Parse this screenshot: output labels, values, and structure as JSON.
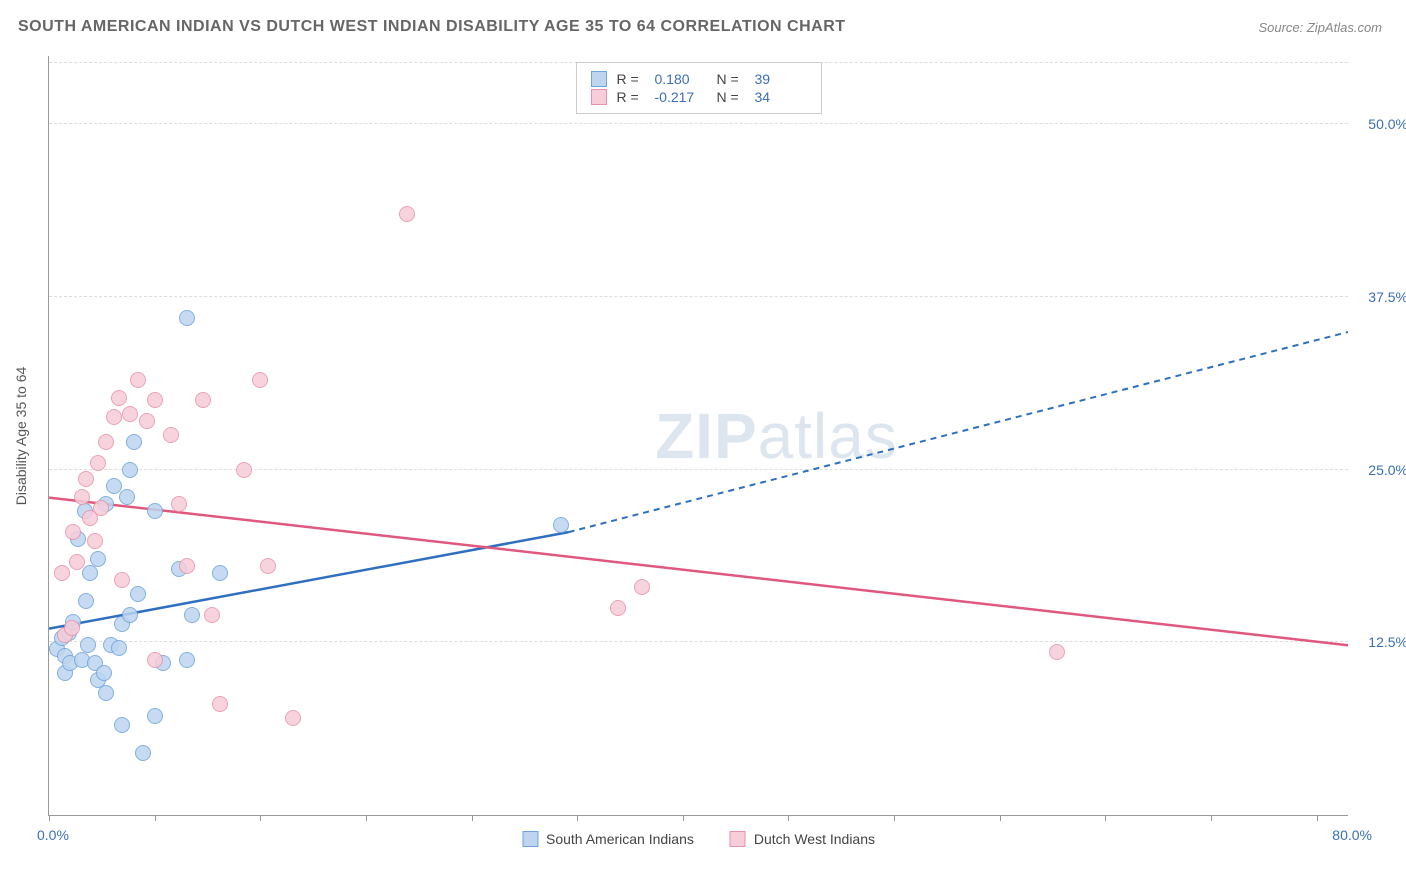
{
  "title": "SOUTH AMERICAN INDIAN VS DUTCH WEST INDIAN DISABILITY AGE 35 TO 64 CORRELATION CHART",
  "source": "Source: ZipAtlas.com",
  "y_axis_title": "Disability Age 35 to 64",
  "watermark_bold": "ZIP",
  "watermark_rest": "atlas",
  "chart": {
    "type": "scatter",
    "xlim": [
      0,
      80
    ],
    "ylim": [
      0,
      55
    ],
    "x_origin_label": "0.0%",
    "x_max_label": "80.0%",
    "y_ticks": [
      {
        "value": 12.5,
        "label": "12.5%"
      },
      {
        "value": 25.0,
        "label": "25.0%"
      },
      {
        "value": 37.5,
        "label": "37.5%"
      },
      {
        "value": 50.0,
        "label": "50.0%"
      }
    ],
    "x_tick_positions": [
      0,
      6.5,
      13,
      19.5,
      26,
      32.5,
      39,
      45.5,
      52,
      58.5,
      65,
      71.5,
      78
    ],
    "grid_color": "#dddddd",
    "background_color": "#ffffff",
    "marker_radius": 8,
    "marker_stroke_width": 1.5,
    "trend_line_width": 2.5,
    "series": [
      {
        "name": "South American Indians",
        "color_fill": "#bdd5ef",
        "color_stroke": "#6ea3dd",
        "trend_color": "#2e6fc0",
        "trend": {
          "x1": 0,
          "y1": 13.5,
          "x2_solid": 32,
          "y2_solid": 20.5,
          "x2_dash": 80,
          "y2_dash": 35
        },
        "R_label": "R =",
        "R": "0.180",
        "N_label": "N =",
        "N": "39",
        "points": [
          [
            0.5,
            12.0
          ],
          [
            0.8,
            12.8
          ],
          [
            1.0,
            11.5
          ],
          [
            1.2,
            13.2
          ],
          [
            1.5,
            14.0
          ],
          [
            1.0,
            10.3
          ],
          [
            1.3,
            11.0
          ],
          [
            2.0,
            11.2
          ],
          [
            2.4,
            12.3
          ],
          [
            2.8,
            11.0
          ],
          [
            3.0,
            9.8
          ],
          [
            3.4,
            10.3
          ],
          [
            3.8,
            12.3
          ],
          [
            4.3,
            12.1
          ],
          [
            4.5,
            13.8
          ],
          [
            5.0,
            14.5
          ],
          [
            5.5,
            16.0
          ],
          [
            2.5,
            17.5
          ],
          [
            3.0,
            18.5
          ],
          [
            1.8,
            20.0
          ],
          [
            2.2,
            22.0
          ],
          [
            3.5,
            22.5
          ],
          [
            4.0,
            23.8
          ],
          [
            4.8,
            23.0
          ],
          [
            5.0,
            25.0
          ],
          [
            5.2,
            27.0
          ],
          [
            6.5,
            22.0
          ],
          [
            7.0,
            11.0
          ],
          [
            8.0,
            17.8
          ],
          [
            8.8,
            14.5
          ],
          [
            8.5,
            11.2
          ],
          [
            10.5,
            17.5
          ],
          [
            5.8,
            4.5
          ],
          [
            4.5,
            6.5
          ],
          [
            6.5,
            7.2
          ],
          [
            3.5,
            8.8
          ],
          [
            8.5,
            36.0
          ],
          [
            31.5,
            21.0
          ],
          [
            2.3,
            15.5
          ]
        ]
      },
      {
        "name": "Dutch West Indians",
        "color_fill": "#f6cdd8",
        "color_stroke": "#e991aa",
        "trend_color": "#e0587e",
        "trend": {
          "x1": 0,
          "y1": 23.0,
          "x2_solid": 80,
          "y2_solid": 12.3,
          "x2_dash": 80,
          "y2_dash": 12.3
        },
        "R_label": "R =",
        "R": "-0.217",
        "N_label": "N =",
        "N": "34",
        "points": [
          [
            0.8,
            17.5
          ],
          [
            1.0,
            13.0
          ],
          [
            1.4,
            13.5
          ],
          [
            1.5,
            20.5
          ],
          [
            2.0,
            23.0
          ],
          [
            2.3,
            24.3
          ],
          [
            2.5,
            21.5
          ],
          [
            3.0,
            25.5
          ],
          [
            3.5,
            27.0
          ],
          [
            4.0,
            28.8
          ],
          [
            4.3,
            30.2
          ],
          [
            5.0,
            29.0
          ],
          [
            5.5,
            31.5
          ],
          [
            6.0,
            28.5
          ],
          [
            6.5,
            30.0
          ],
          [
            7.5,
            27.5
          ],
          [
            8.0,
            22.5
          ],
          [
            8.5,
            18.0
          ],
          [
            9.5,
            30.0
          ],
          [
            10.0,
            14.5
          ],
          [
            10.5,
            8.0
          ],
          [
            12.0,
            25.0
          ],
          [
            13.5,
            18.0
          ],
          [
            13.0,
            31.5
          ],
          [
            15.0,
            7.0
          ],
          [
            6.5,
            11.2
          ],
          [
            4.5,
            17.0
          ],
          [
            35.0,
            15.0
          ],
          [
            36.5,
            16.5
          ],
          [
            62.0,
            11.8
          ],
          [
            22.0,
            43.5
          ],
          [
            3.2,
            22.2
          ],
          [
            1.7,
            18.3
          ],
          [
            2.8,
            19.8
          ]
        ]
      }
    ]
  }
}
